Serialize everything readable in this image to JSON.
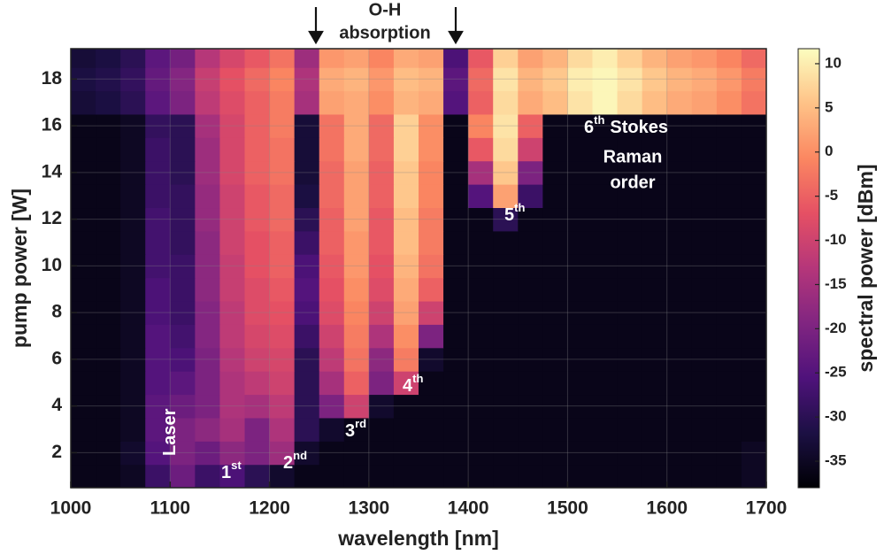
{
  "chart_data": {
    "type": "heatmap",
    "xlabel": "wavelength [nm]",
    "ylabel": "pump power [W]",
    "colorbar_label": "spectral power [dBm]",
    "xlim": [
      1000,
      1700
    ],
    "xticks": [
      1000,
      1100,
      1200,
      1300,
      1400,
      1500,
      1600,
      1700
    ],
    "ylim": [
      0.5,
      19.3
    ],
    "yticks": [
      2,
      4,
      6,
      8,
      10,
      12,
      14,
      16,
      18
    ],
    "zlim": [
      -38,
      11.7
    ],
    "zticks": [
      -35,
      -30,
      -25,
      -20,
      -15,
      -10,
      -5,
      0,
      5,
      10
    ],
    "grid": true,
    "colormap": [
      "#000004",
      "#1c1044",
      "#4f127b",
      "#812581",
      "#b5367a",
      "#e55064",
      "#fb8761",
      "#fec287",
      "#fcfdbf"
    ],
    "x_edges": [
      1000,
      1025,
      1050,
      1075,
      1100,
      1125,
      1150,
      1175,
      1200,
      1225,
      1250,
      1275,
      1300,
      1325,
      1350,
      1375,
      1400,
      1425,
      1450,
      1475,
      1500,
      1525,
      1550,
      1575,
      1600,
      1625,
      1650,
      1675,
      1700
    ],
    "y_edges": [
      0.5,
      1.5,
      2.5,
      3.5,
      4.5,
      5.5,
      6.5,
      7.5,
      8.5,
      9.5,
      10.5,
      11.5,
      12.5,
      13.5,
      14.5,
      15.5,
      16.5,
      17.5,
      18.5,
      19.3
    ],
    "z": [
      [
        -36,
        -36,
        -35,
        -28,
        -22,
        -28,
        -26,
        -30,
        -34,
        -36,
        -36,
        -36,
        -36,
        -36,
        -36,
        -36,
        -36,
        -36,
        -36,
        -36,
        -36,
        -36,
        -36,
        -36,
        -36,
        -36,
        -36,
        -35
      ],
      [
        -36,
        -36,
        -34,
        -25,
        -20,
        -22,
        -18,
        -20,
        -16,
        -34,
        -36,
        -36,
        -36,
        -36,
        -36,
        -36,
        -36,
        -36,
        -36,
        -36,
        -36,
        -36,
        -36,
        -36,
        -36,
        -36,
        -36,
        -35
      ],
      [
        -36,
        -36,
        -35,
        -24,
        -20,
        -18,
        -15,
        -20,
        -14,
        -30,
        -34,
        -36,
        -36,
        -36,
        -36,
        -36,
        -36,
        -36,
        -36,
        -36,
        -36,
        -36,
        -36,
        -36,
        -36,
        -36,
        -36,
        -36
      ],
      [
        -36,
        -36,
        -35,
        -24,
        -22,
        -20,
        -14,
        -15,
        -12,
        -30,
        -20,
        -10,
        -34,
        -36,
        -36,
        -36,
        -36,
        -36,
        -36,
        -36,
        -36,
        -36,
        -36,
        -36,
        -36,
        -36,
        -36,
        -36
      ],
      [
        -36,
        -36,
        -35,
        -25,
        -24,
        -20,
        -14,
        -12,
        -10,
        -30,
        -15,
        -5,
        -20,
        -10,
        -36,
        -36,
        -36,
        -36,
        -36,
        -36,
        -36,
        -36,
        -36,
        -36,
        -36,
        -36,
        -36,
        -36
      ],
      [
        -36,
        -36,
        -35,
        -25,
        -26,
        -20,
        -13,
        -10,
        -9,
        -30,
        -12,
        -3,
        -18,
        -2,
        -34,
        -36,
        -36,
        -36,
        -36,
        -36,
        -36,
        -36,
        -36,
        -36,
        -36,
        -36,
        -36,
        -36
      ],
      [
        -36,
        -36,
        -35,
        -25,
        -27,
        -19,
        -12,
        -9,
        -8,
        -28,
        -10,
        -2,
        -14,
        0,
        -20,
        -36,
        -36,
        -36,
        -36,
        -36,
        -36,
        -36,
        -36,
        -36,
        -36,
        -36,
        -36,
        -36
      ],
      [
        -36,
        -36,
        -35,
        -26,
        -28,
        -19,
        -12,
        -8,
        -7,
        -26,
        -8,
        -1,
        -10,
        2,
        -10,
        -36,
        -36,
        -36,
        -36,
        -36,
        -36,
        -36,
        -36,
        -36,
        -36,
        -36,
        -36,
        -36
      ],
      [
        -36,
        -36,
        -35,
        -26,
        -28,
        -18,
        -11,
        -8,
        -6,
        -25,
        -7,
        0,
        -8,
        3,
        -5,
        -36,
        -36,
        -36,
        -36,
        -36,
        -36,
        -36,
        -36,
        -36,
        -36,
        -36,
        -36,
        -36
      ],
      [
        -36,
        -36,
        -35,
        -27,
        -28,
        -18,
        -11,
        -7,
        -5,
        -26,
        -6,
        1,
        -7,
        4,
        -3,
        -36,
        -36,
        -36,
        -36,
        -36,
        -36,
        -36,
        -36,
        -36,
        -36,
        -36,
        -36,
        -36
      ],
      [
        -36,
        -36,
        -35,
        -27,
        -29,
        -18,
        -10,
        -7,
        -5,
        -28,
        -5,
        1,
        -6,
        5,
        -2,
        -36,
        -36,
        -36,
        -36,
        -36,
        -36,
        -36,
        -36,
        -36,
        -36,
        -36,
        -36,
        -36
      ],
      [
        -36,
        -36,
        -35,
        -27,
        -29,
        -17,
        -10,
        -6,
        -4,
        -30,
        -5,
        2,
        -6,
        5,
        -2,
        -36,
        -36,
        -30,
        -36,
        -36,
        -36,
        -36,
        -36,
        -36,
        -36,
        -36,
        -36,
        -36
      ],
      [
        -36,
        -36,
        -35,
        -28,
        -29,
        -17,
        -10,
        -6,
        -4,
        -32,
        -4,
        2,
        -5,
        6,
        -1,
        -36,
        -25,
        2,
        -28,
        -36,
        -36,
        -36,
        -36,
        -36,
        -36,
        -36,
        -36,
        -36
      ],
      [
        -36,
        -36,
        -35,
        -28,
        -30,
        -16,
        -9,
        -5,
        -3,
        -33,
        -4,
        2,
        -5,
        6,
        -1,
        -36,
        -15,
        6,
        -20,
        -36,
        -36,
        -36,
        -36,
        -36,
        -36,
        -36,
        -36,
        -36
      ],
      [
        -36,
        -36,
        -35,
        -28,
        -30,
        -16,
        -9,
        -5,
        -3,
        -33,
        -3,
        3,
        -4,
        7,
        0,
        -36,
        -6,
        8,
        -10,
        -36,
        -36,
        -36,
        -36,
        -36,
        -36,
        -36,
        -36,
        -36
      ],
      [
        -36,
        -36,
        -35,
        -29,
        -30,
        -15,
        -9,
        -5,
        -2,
        -33,
        -3,
        3,
        -4,
        7,
        0,
        -36,
        -1,
        9,
        -5,
        -36,
        -36,
        -36,
        -36,
        -36,
        -36,
        -36,
        -36,
        -36
      ],
      [
        -33,
        -32,
        -30,
        -24,
        -20,
        -12,
        -8,
        -5,
        -2,
        -15,
        2,
        3,
        0,
        4,
        3,
        -25,
        -5,
        8,
        3,
        5,
        9,
        11,
        8,
        5,
        3,
        2,
        0,
        -3
      ],
      [
        -32,
        -31,
        -29,
        -23,
        -19,
        -11,
        -7,
        -4,
        -1,
        -14,
        3,
        4,
        1,
        5,
        4,
        -24,
        -4,
        9,
        4,
        6,
        10,
        11,
        9,
        6,
        4,
        3,
        1,
        -2
      ],
      [
        -33,
        -32,
        -30,
        -24,
        -21,
        -13,
        -9,
        -6,
        -3,
        -16,
        1,
        2,
        -1,
        3,
        2,
        -26,
        -6,
        7,
        2,
        4,
        8,
        10,
        7,
        4,
        2,
        1,
        -1,
        -4
      ]
    ],
    "annotations": [
      {
        "text": "Laser"
      },
      {
        "text": "1",
        "sup": "st"
      },
      {
        "text": "2",
        "sup": "nd"
      },
      {
        "text": "3",
        "sup": "rd"
      },
      {
        "text": "4",
        "sup": "th"
      },
      {
        "text": "5",
        "sup": "th"
      },
      {
        "text": "6",
        "sup": "th",
        "after": "Stokes",
        "lines": [
          "Raman",
          "order"
        ]
      },
      {
        "lines": [
          "O-H",
          "absorption"
        ]
      }
    ]
  }
}
